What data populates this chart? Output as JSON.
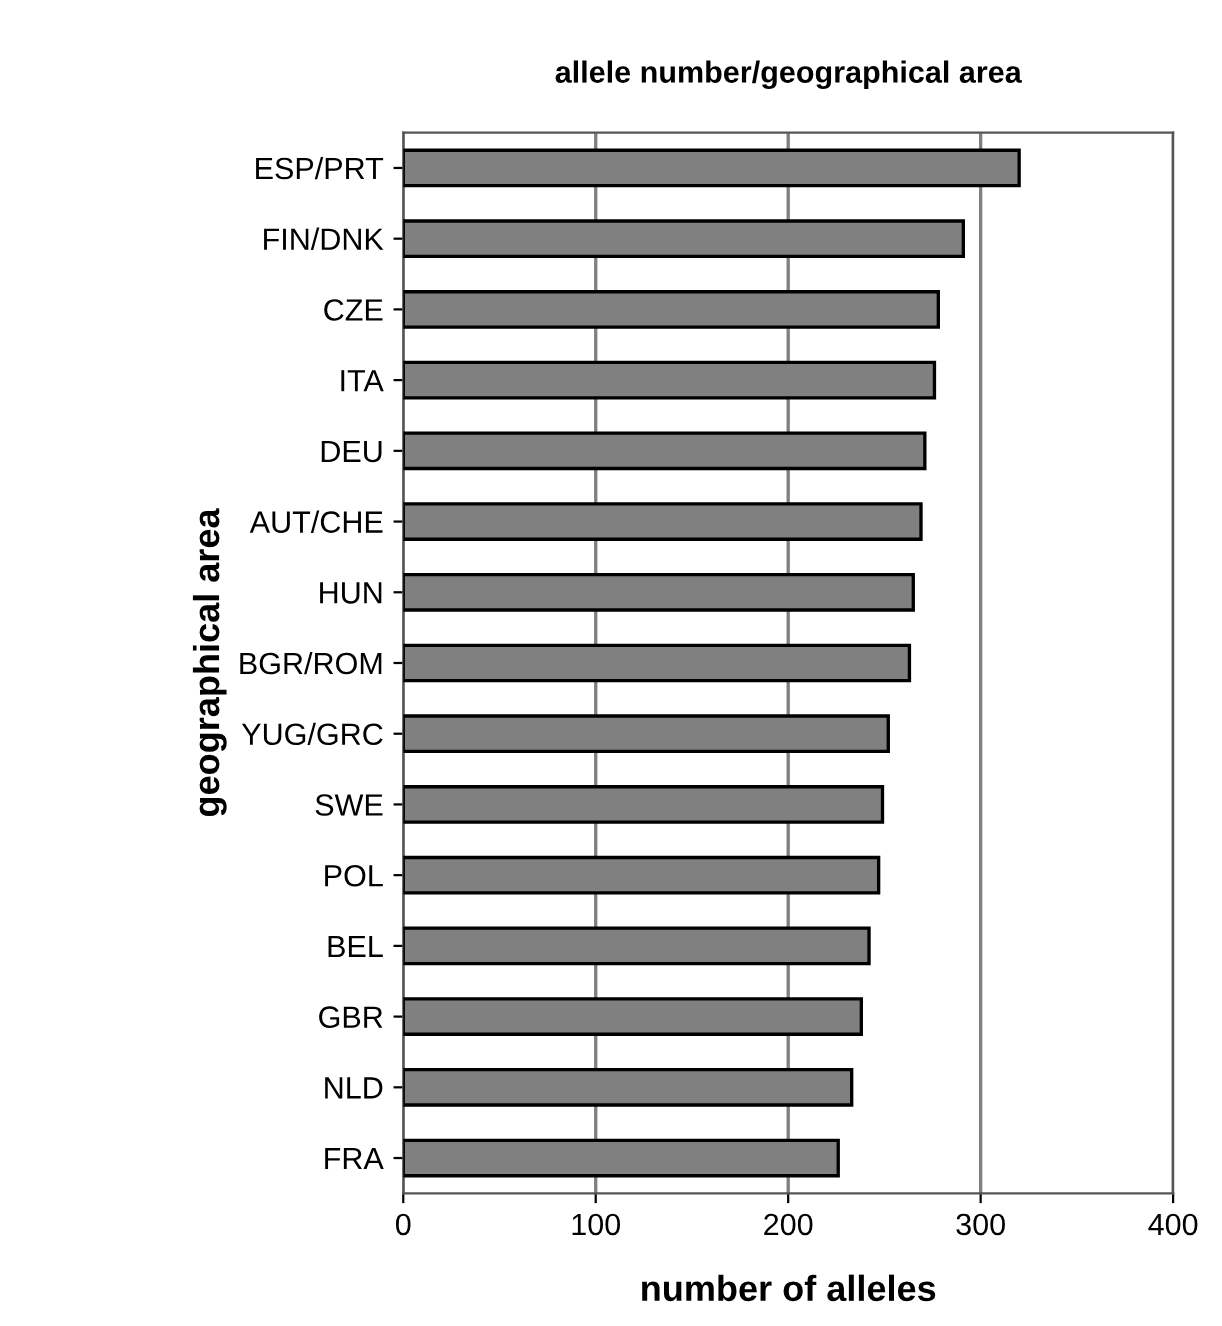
{
  "chart_data": {
    "type": "bar",
    "orientation": "horizontal",
    "title": "allele number/geographical area",
    "xlabel": "number of alleles",
    "ylabel": "geographical area",
    "categories": [
      "ESP/PRT",
      "FIN/DNK",
      "CZE",
      "ITA",
      "DEU",
      "AUT/CHE",
      "HUN",
      "BGR/ROM",
      "YUG/GRC",
      "SWE",
      "POL",
      "BEL",
      "GBR",
      "NLD",
      "FRA"
    ],
    "values": [
      320,
      291,
      278,
      276,
      271,
      269,
      265,
      263,
      252,
      249,
      247,
      242,
      238,
      233,
      226
    ],
    "color": "#808080",
    "xlim": [
      0,
      400
    ],
    "xticks": [
      0,
      100,
      200,
      300,
      400
    ],
    "grid": "x"
  }
}
